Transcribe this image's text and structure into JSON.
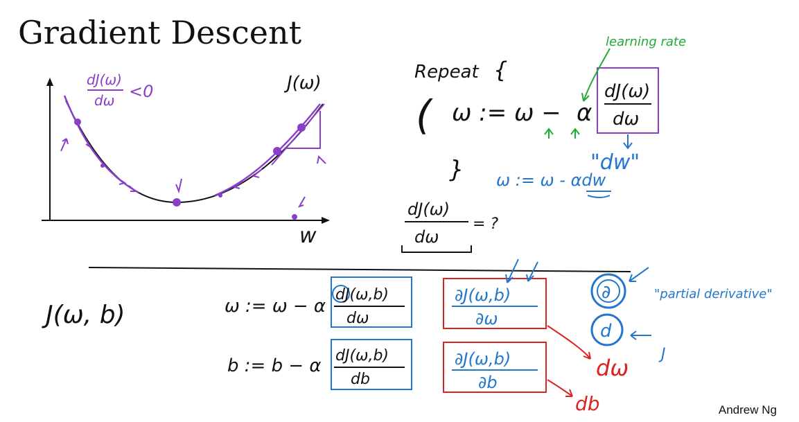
{
  "title": "Gradient Descent",
  "author": "Andrew Ng",
  "colors": {
    "ink": "#111111",
    "purple": "#8a3fc8",
    "green": "#22aa33",
    "blue": "#2277cc",
    "red": "#dd2222"
  },
  "graph": {
    "cost_label": "J(ω)",
    "x_axis_label": "w",
    "slope_note": "dJ(ω)/dω",
    "slope_note_num": "dJ(ω)",
    "slope_note_den": "dω",
    "slope_note_cmp": "<0"
  },
  "update_rule": {
    "repeat_label": "Repeat",
    "open_brace": "{",
    "close_brace": "}",
    "open_paren": "(",
    "lhs": "ω := ω −",
    "alpha": "α",
    "deriv_num": "dJ(ω)",
    "deriv_den": "dω",
    "learning_rate_label": "learning rate",
    "dw_label": "\"dw\"",
    "code_update": "ω := ω - αdw",
    "question_num": "dJ(ω)",
    "question_den": "dω",
    "question_tail": "= ?"
  },
  "bottom": {
    "cost_two_params": "J(ω, b)",
    "w_update_lhs": "ω := ω − α",
    "w_num": "dJ(ω,b)",
    "w_den": "dω",
    "w_partial_num": "∂J(ω,b)",
    "w_partial_den": "∂ω",
    "w_dw_label": "dω",
    "b_update_lhs": "b := b − α",
    "b_num": "dJ(ω,b)",
    "b_den": "db",
    "b_partial_num": "∂J(ω,b)",
    "b_partial_den": "∂b",
    "b_db_label": "db",
    "partial_symbol": "∂",
    "d_symbol": "d",
    "partial_note": "\"partial derivative\"",
    "j_note": "J"
  }
}
